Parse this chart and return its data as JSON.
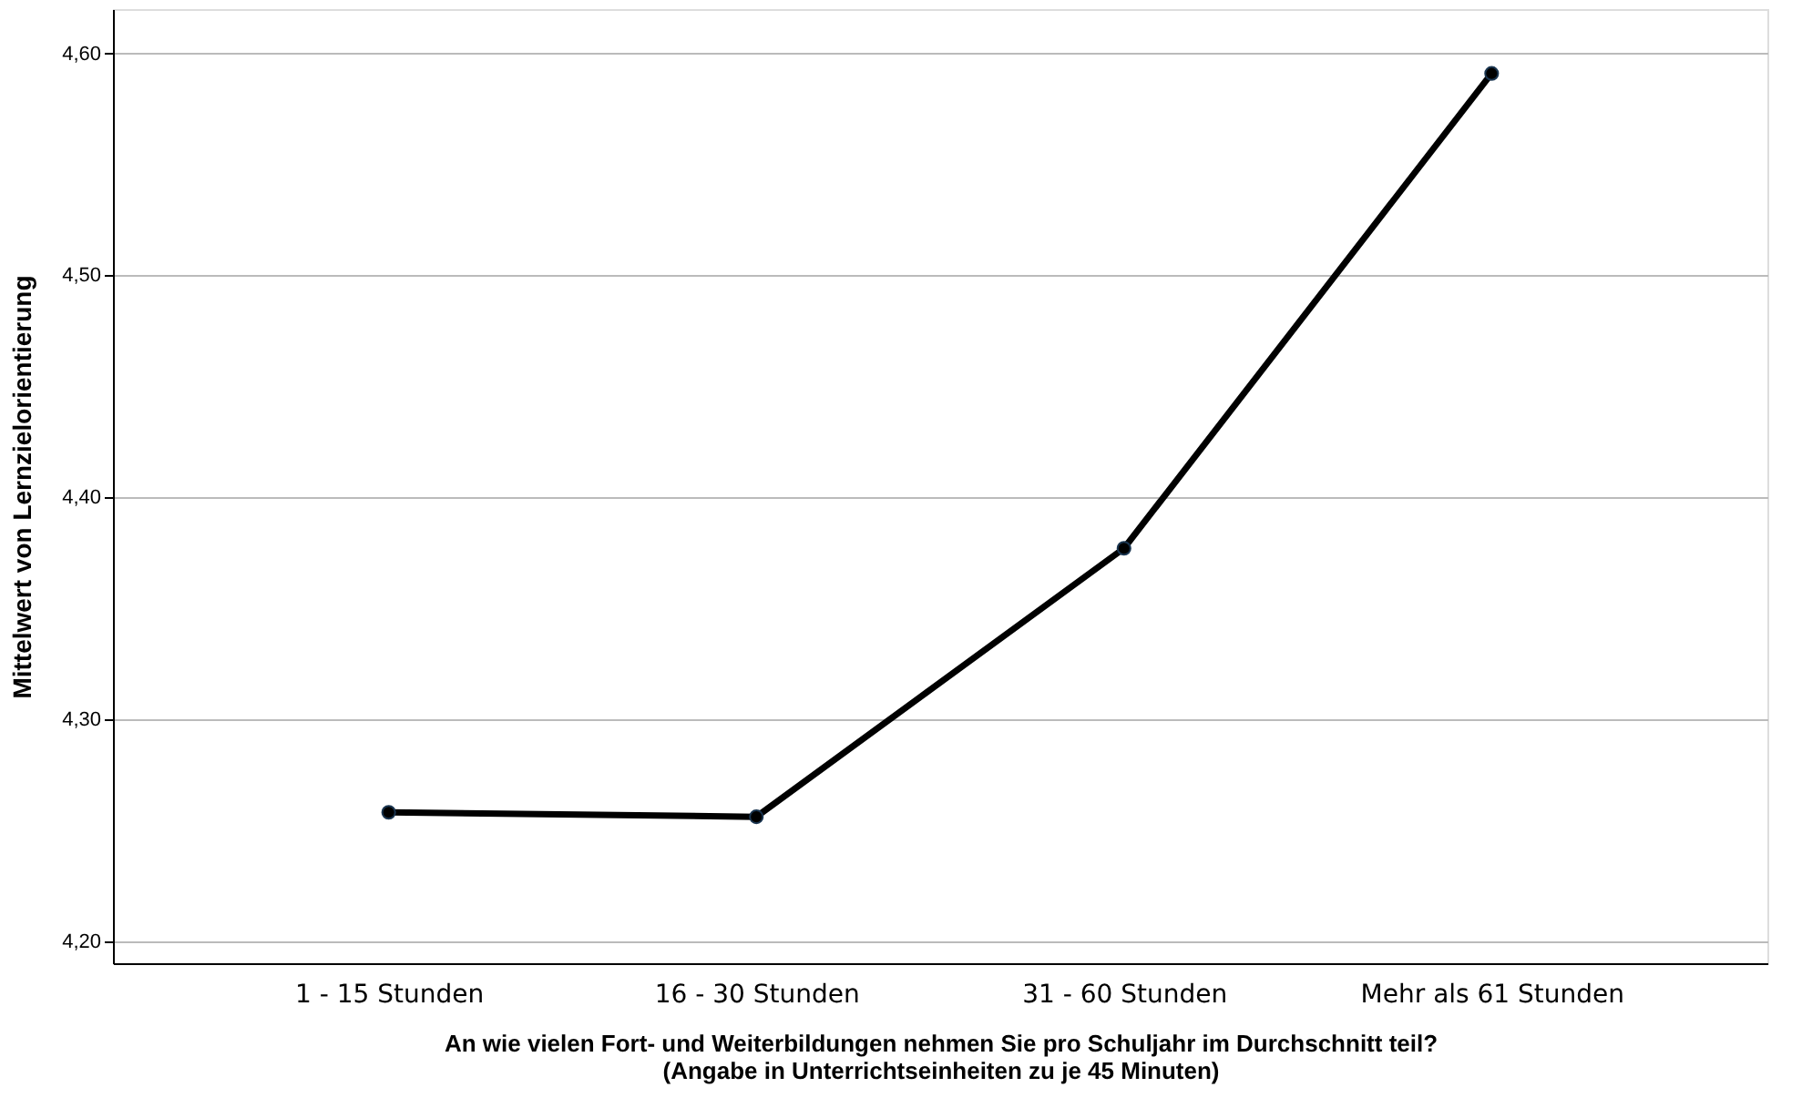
{
  "chart_data": {
    "type": "line",
    "xlabel": "An wie vielen Fort- und Weiterbildungen nehmen Sie pro Schuljahr im Durchschnitt teil?\n(Angabe in Unterrichtseinheiten zu je 45 Minuten)",
    "ylabel": "Mittelwert von Lernzielorientierung",
    "categories": [
      "1 - 15 Stunden",
      "16 - 30 Stunden",
      "31 - 60 Stunden",
      "Mehr als 61 Stunden"
    ],
    "series": [
      {
        "color": "#000000",
        "values": [
          4.258,
          4.256,
          4.377,
          4.591
        ]
      }
    ],
    "ylim": [
      4.19,
      4.62
    ],
    "yticks": [
      {
        "value": 4.2,
        "label": "4,20"
      },
      {
        "value": 4.3,
        "label": "4,30"
      },
      {
        "value": 4.4,
        "label": "4,40"
      },
      {
        "value": 4.5,
        "label": "4,50"
      },
      {
        "value": 4.6,
        "label": "4,60"
      }
    ],
    "grid": "y",
    "marker": "circle",
    "line_style": "solid",
    "legend": false
  }
}
